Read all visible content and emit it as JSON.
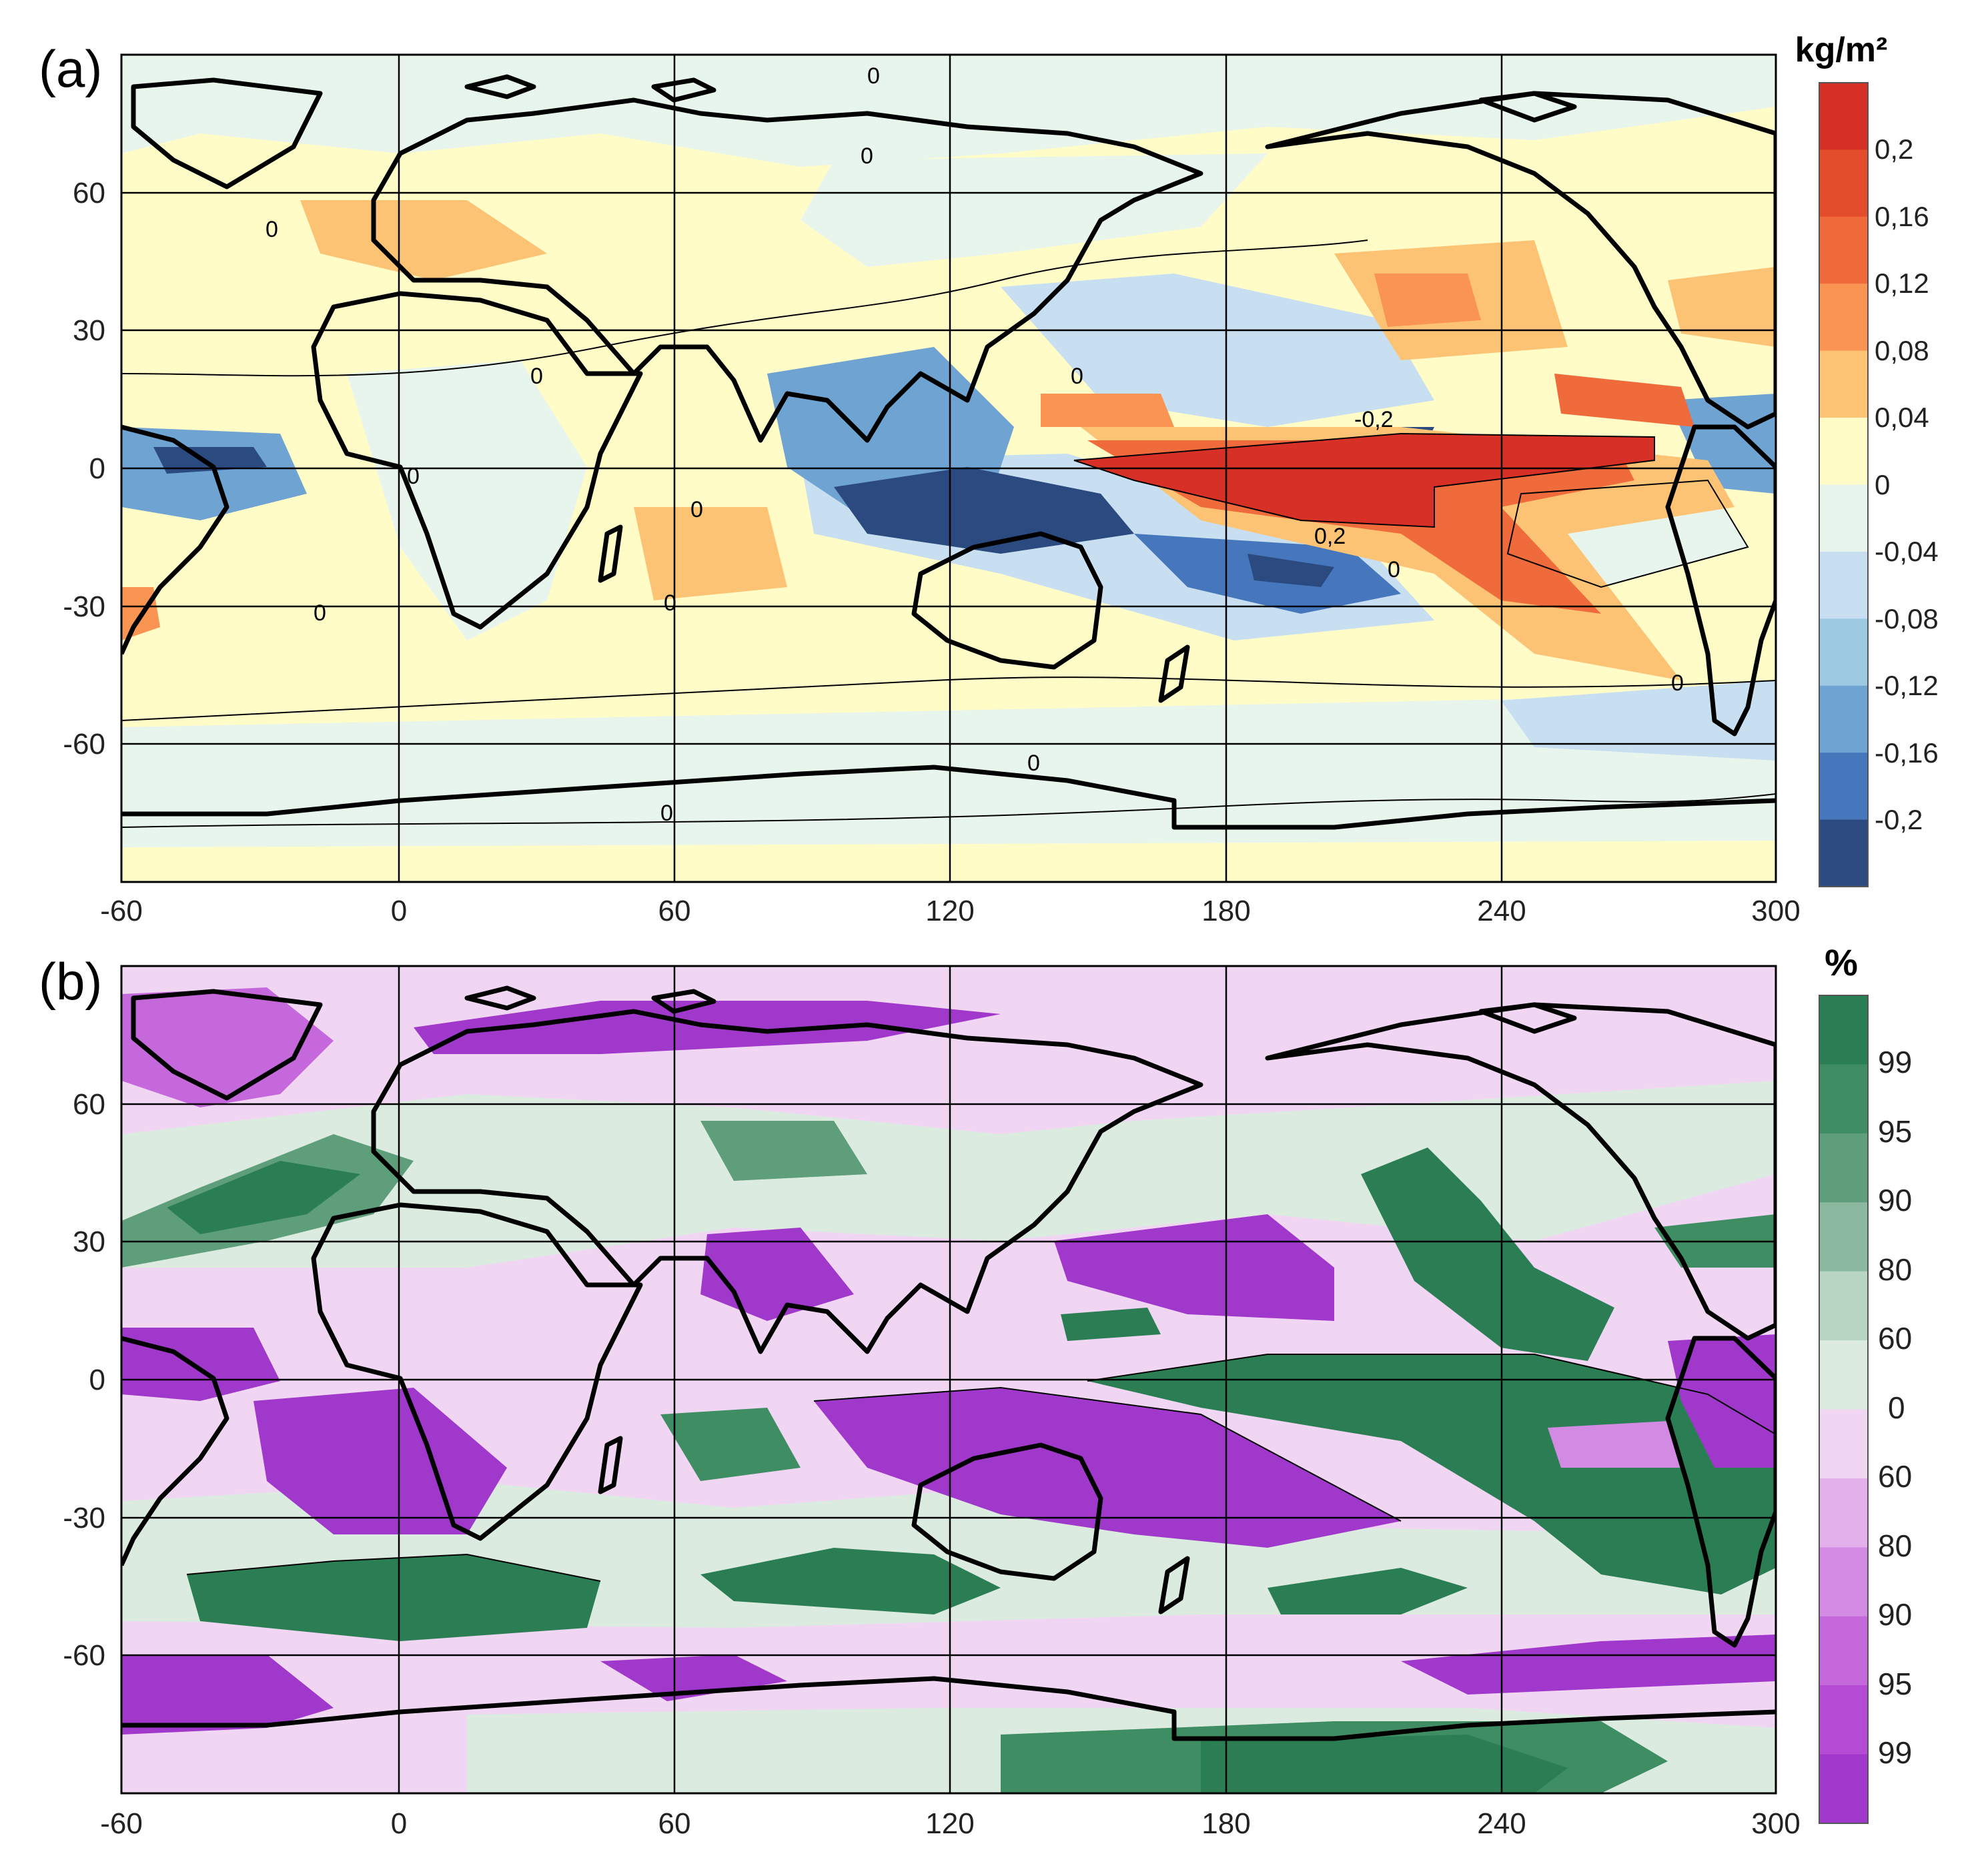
{
  "figure": {
    "panels": [
      {
        "label": "(a)",
        "unit": "kg/m²",
        "colorbar": {
          "colors": [
            "#d73027",
            "#e34d2b",
            "#f06b3b",
            "#f99453",
            "#fcc375",
            "#fffcc8",
            "#e8f5ec",
            "#c7dff0",
            "#9ec9e3",
            "#6fa3d2",
            "#4677bc",
            "#2b4a7f"
          ],
          "tick_labels": [
            "0,2",
            "0,16",
            "0,12",
            "0,08",
            "0,04",
            "0",
            "-0,04",
            "-0,08",
            "-0,12",
            "-0,16",
            "-0,2"
          ]
        },
        "contour_labels": [
          "0",
          "0",
          "0",
          "0",
          "0",
          "0",
          "0",
          "0",
          "0",
          "0",
          "0",
          "0",
          "-0,2",
          "0,2",
          "0"
        ]
      },
      {
        "label": "(b)",
        "unit": "%",
        "colorbar": {
          "colors": [
            "#2b7d54",
            "#3f8d63",
            "#5e9e7b",
            "#8ab99f",
            "#b8d5c3",
            "#dcebe0",
            "#f1d6f4",
            "#e3b0ec",
            "#d38ae3",
            "#c568dc",
            "#b54ad4",
            "#a038cb"
          ],
          "tick_labels": [
            "99",
            "95",
            "90",
            "80",
            "60",
            "0",
            "60",
            "80",
            "90",
            "95",
            "99"
          ]
        }
      }
    ],
    "x_axis": {
      "ticks": [
        -60,
        0,
        60,
        120,
        180,
        240,
        300
      ],
      "tick_labels": [
        "-60",
        "0",
        "60",
        "120",
        "180",
        "240",
        "300"
      ]
    },
    "y_axis": {
      "ticks": [
        60,
        30,
        0,
        -30,
        -60
      ],
      "tick_labels": [
        "60",
        "30",
        "0",
        "-30",
        "-60"
      ]
    }
  },
  "chart_data": [
    {
      "type": "heatmap",
      "title": "",
      "legend_title": "kg/m²",
      "x_range": [
        -60,
        300
      ],
      "y_range": [
        -90,
        90
      ],
      "x_ticks": [
        -60,
        0,
        60,
        120,
        180,
        240,
        300
      ],
      "y_ticks": [
        -60,
        -30,
        0,
        30,
        60
      ],
      "color_levels": [
        -0.2,
        -0.16,
        -0.12,
        -0.08,
        -0.04,
        0,
        0.04,
        0.08,
        0.12,
        0.16,
        0.2
      ],
      "grid": true,
      "legend_position": "right",
      "regions": [
        {
          "lon_range": [
            150,
            230
          ],
          "lat_range": [
            -8,
            6
          ],
          "level": 0.2
        },
        {
          "lon_range": [
            230,
            280
          ],
          "lat_range": [
            -30,
            5
          ],
          "level": 0.12
        },
        {
          "lon_range": [
            210,
            240
          ],
          "lat_range": [
            25,
            45
          ],
          "level": 0.08
        },
        {
          "lon_range": [
            100,
            150
          ],
          "lat_range": [
            -15,
            0
          ],
          "level": -0.2
        },
        {
          "lon_range": [
            180,
            215
          ],
          "lat_range": [
            -25,
            -15
          ],
          "level": -0.2
        },
        {
          "lon_range": [
            -50,
            -20
          ],
          "lat_range": [
            -5,
            8
          ],
          "level": -0.2
        },
        {
          "lon_range": [
            180,
            220
          ],
          "lat_range": [
            5,
            10
          ],
          "level": -0.2
        }
      ]
    },
    {
      "type": "heatmap",
      "title": "",
      "legend_title": "%",
      "x_range": [
        -60,
        300
      ],
      "y_range": [
        -90,
        90
      ],
      "x_ticks": [
        -60,
        0,
        60,
        120,
        180,
        240,
        300
      ],
      "y_ticks": [
        -60,
        -30,
        0,
        30,
        60
      ],
      "color_levels": [
        -99,
        -95,
        -90,
        -80,
        -60,
        0,
        60,
        80,
        90,
        95,
        99
      ],
      "grid": true,
      "legend_position": "right",
      "regions": [
        {
          "lon_range": [
            160,
            290
          ],
          "lat_range": [
            -30,
            5
          ],
          "level": 99
        },
        {
          "lon_range": [
            200,
            240
          ],
          "lat_range": [
            15,
            50
          ],
          "level": 99
        },
        {
          "lon_range": [
            -30,
            30
          ],
          "lat_range": [
            -50,
            -40
          ],
          "level": 99
        },
        {
          "lon_range": [
            70,
            160
          ],
          "lat_range": [
            -45,
            -35
          ],
          "level": 99
        },
        {
          "lon_range": [
            190,
            300
          ],
          "lat_range": [
            -88,
            -75
          ],
          "level": 99
        },
        {
          "lon_range": [
            120,
            200
          ],
          "lat_range": [
            -30,
            -5
          ],
          "level": -99
        },
        {
          "lon_range": [
            150,
            215
          ],
          "lat_range": [
            15,
            30
          ],
          "level": -99
        },
        {
          "lon_range": [
            -60,
            0
          ],
          "lat_range": [
            -80,
            -65
          ],
          "level": -99
        },
        {
          "lon_range": [
            230,
            300
          ],
          "lat_range": [
            -65,
            -55
          ],
          "level": -99
        },
        {
          "lon_range": [
            -40,
            40
          ],
          "lat_range": [
            -30,
            -5
          ],
          "level": -99
        }
      ]
    }
  ]
}
